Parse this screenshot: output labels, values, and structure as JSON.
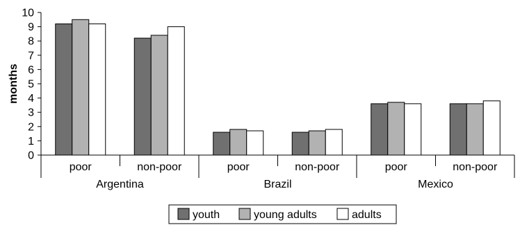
{
  "chart_data": {
    "type": "bar",
    "ylabel": "months",
    "ylim": [
      0,
      10
    ],
    "yticks": [
      0,
      1,
      2,
      3,
      4,
      5,
      6,
      7,
      8,
      9,
      10
    ],
    "grid": false,
    "legend_position": "bottom",
    "groups": [
      {
        "label": "Argentina",
        "categories": [
          "poor",
          "non-poor"
        ]
      },
      {
        "label": "Brazil",
        "categories": [
          "poor",
          "non-poor"
        ]
      },
      {
        "label": "Mexico",
        "categories": [
          "poor",
          "non-poor"
        ]
      }
    ],
    "categories": [
      "Argentina poor",
      "Argentina non-poor",
      "Brazil poor",
      "Brazil non-poor",
      "Mexico poor",
      "Mexico non-poor"
    ],
    "series": [
      {
        "name": "youth",
        "color": "#707070",
        "values": [
          9.2,
          8.2,
          1.6,
          1.6,
          3.6,
          3.6
        ]
      },
      {
        "name": "young adults",
        "color": "#b2b2b2",
        "values": [
          9.5,
          8.4,
          1.8,
          1.7,
          3.7,
          3.6
        ]
      },
      {
        "name": "adults",
        "color": "#ffffff",
        "values": [
          9.2,
          9.0,
          1.7,
          1.8,
          3.6,
          3.8
        ]
      }
    ]
  }
}
